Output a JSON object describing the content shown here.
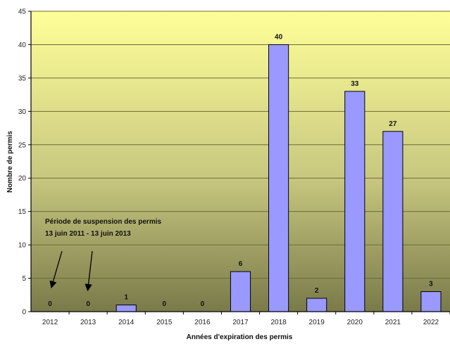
{
  "chart_data": {
    "type": "bar",
    "title": "",
    "xlabel": "Années d'expiration des permis",
    "ylabel": "Nombre de permis",
    "categories": [
      "2012",
      "2013",
      "2014",
      "2015",
      "2016",
      "2017",
      "2018",
      "2019",
      "2020",
      "2021",
      "2022"
    ],
    "values": [
      0,
      0,
      1,
      0,
      0,
      6,
      40,
      2,
      33,
      27,
      3
    ],
    "ylim": [
      0,
      45
    ],
    "yticks": [
      0,
      5,
      10,
      15,
      20,
      25,
      30,
      35,
      40,
      45
    ],
    "grid": true,
    "legend": "none",
    "bar_color": "#9999ff",
    "bar_stroke": "#000000",
    "background_gradient": [
      "#ffff99",
      "#c8c880",
      "#7a7a4a"
    ],
    "annotation": {
      "line1": "Période de suspension des permis",
      "line2": "13 juin 2011 - 13 juin 2013"
    }
  }
}
